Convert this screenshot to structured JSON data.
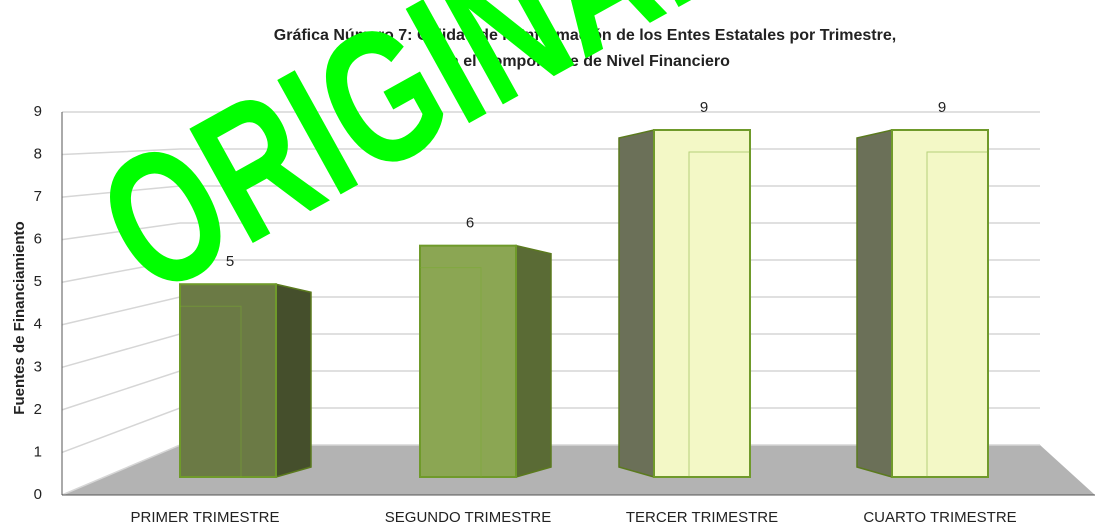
{
  "chart_data": {
    "type": "bar3d",
    "title": [
      "Gráfica Número 7: Calidad de la Información de los Entes Estatales por Trimestre,",
      "en el Componente de Nivel Financiero"
    ],
    "watermark": "ORIGINAL",
    "ylabel": "Fuentes de Financiamiento",
    "categories": [
      "PRIMER TRIMESTRE",
      "SEGUNDO TRIMESTRE",
      "TERCER TRIMESTRE",
      "CUARTO TRIMESTRE"
    ],
    "values": [
      5,
      6,
      9,
      9
    ],
    "colors": [
      "#6b7a45",
      "#8ba653",
      "#f3f8c6",
      "#f3f8c6"
    ],
    "ylim": [
      0,
      9
    ],
    "yticks": [
      0,
      1,
      2,
      3,
      4,
      5,
      6,
      7,
      8,
      9
    ],
    "grid": true
  }
}
